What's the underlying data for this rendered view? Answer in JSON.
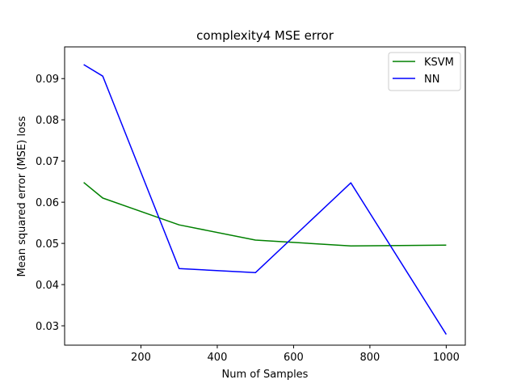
{
  "chart_data": {
    "type": "line",
    "title": "complexity4 MSE error",
    "xlabel": "Num of Samples",
    "ylabel": "Mean squared error (MSE) loss",
    "xlim": [
      0,
      1050
    ],
    "ylim": [
      0.0253,
      0.0977
    ],
    "xticks": [
      200,
      400,
      600,
      800,
      1000
    ],
    "yticks": [
      0.03,
      0.04,
      0.05,
      0.06,
      0.07,
      0.08,
      0.09
    ],
    "ytick_labels": [
      "0.03",
      "0.04",
      "0.05",
      "0.06",
      "0.07",
      "0.08",
      "0.09"
    ],
    "grid": false,
    "legend_position": "upper right",
    "series": [
      {
        "name": "KSVM",
        "color": "#008000",
        "x": [
          50,
          100,
          300,
          500,
          750,
          1000
        ],
        "y": [
          0.0648,
          0.061,
          0.0545,
          0.0508,
          0.0494,
          0.0496
        ]
      },
      {
        "name": "NN",
        "color": "#0000ff",
        "x": [
          50,
          100,
          300,
          500,
          750,
          1000
        ],
        "y": [
          0.0934,
          0.0906,
          0.0439,
          0.0429,
          0.0647,
          0.0279
        ]
      }
    ]
  }
}
